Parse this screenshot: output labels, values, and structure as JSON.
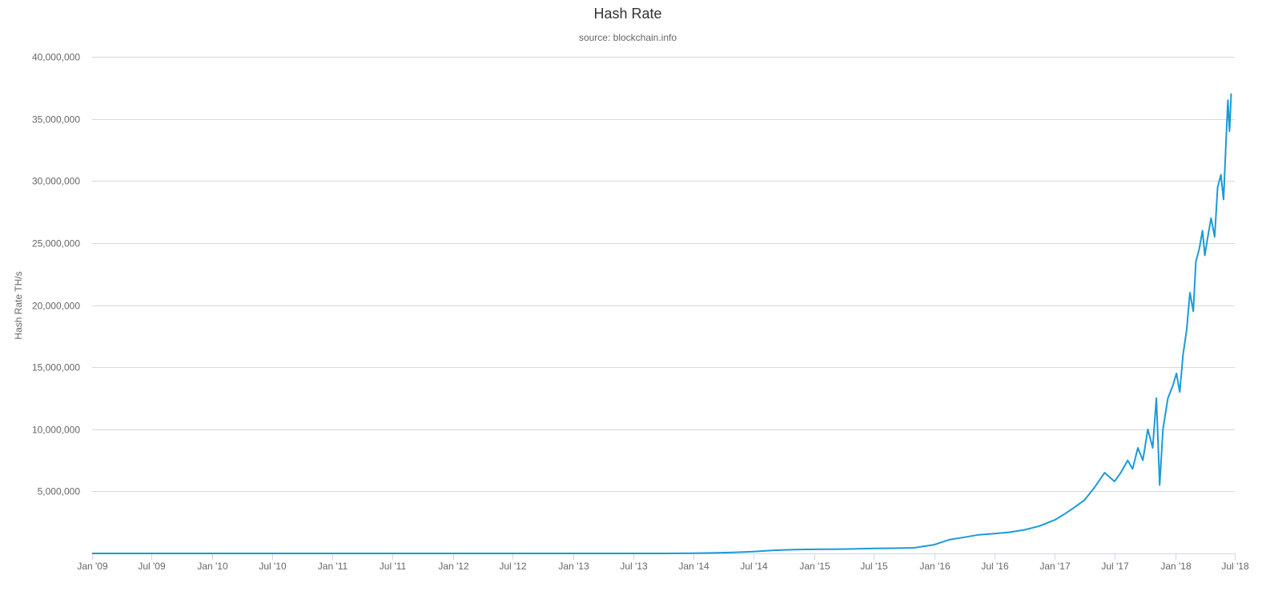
{
  "chart_data": {
    "type": "line",
    "title": "Hash Rate",
    "subtitle": "source: blockchain.info",
    "xlabel": "",
    "ylabel": "Hash Rate TH/s",
    "x_type": "datetime",
    "xlim": [
      "2009-01-01",
      "2018-07-01"
    ],
    "ylim": [
      0,
      40000000
    ],
    "y_tick_values": [
      5000000,
      10000000,
      15000000,
      20000000,
      25000000,
      30000000,
      35000000,
      40000000
    ],
    "y_tick_labels": [
      "5,000,000",
      "10,000,000",
      "15,000,000",
      "20,000,000",
      "25,000,000",
      "30,000,000",
      "35,000,000",
      "40,000,000"
    ],
    "x_tick_values": [
      "2009-01-01",
      "2009-07-01",
      "2010-01-01",
      "2010-07-01",
      "2011-01-01",
      "2011-07-01",
      "2012-01-01",
      "2012-07-01",
      "2013-01-01",
      "2013-07-01",
      "2014-01-01",
      "2014-07-01",
      "2015-01-01",
      "2015-07-01",
      "2016-01-01",
      "2016-07-01",
      "2017-01-01",
      "2017-07-01",
      "2018-01-01",
      "2018-07-01"
    ],
    "x_tick_labels": [
      "Jan '09",
      "Jul '09",
      "Jan '10",
      "Jul '10",
      "Jan '11",
      "Jul '11",
      "Jan '12",
      "Jul '12",
      "Jan '13",
      "Jul '13",
      "Jan '14",
      "Jul '14",
      "Jan '15",
      "Jul '15",
      "Jan '16",
      "Jul '16",
      "Jan '17",
      "Jul '17",
      "Jan '18",
      "Jul '18"
    ],
    "grid": true,
    "legend": "none",
    "colors": {
      "series": "#1a9bd7",
      "grid": "#d8d8d8",
      "axis": "#ccd6eb",
      "text": "#666666",
      "title": "#333333"
    },
    "series": [
      {
        "x": [
          "2009-01-03",
          "2009-07-01",
          "2010-01-01",
          "2010-07-01",
          "2011-01-01",
          "2011-07-01",
          "2012-01-01",
          "2012-07-01",
          "2013-01-01",
          "2013-07-01",
          "2013-10-01",
          "2014-01-01",
          "2014-03-01",
          "2014-05-01",
          "2014-07-01",
          "2014-09-01",
          "2014-11-01",
          "2015-01-01",
          "2015-04-01",
          "2015-07-01",
          "2015-09-01",
          "2015-11-01",
          "2016-01-01",
          "2016-02-15",
          "2016-04-01",
          "2016-05-15",
          "2016-07-01",
          "2016-08-15",
          "2016-10-01",
          "2016-11-15",
          "2017-01-01",
          "2017-02-01",
          "2017-03-01",
          "2017-04-01",
          "2017-05-01",
          "2017-06-01",
          "2017-07-01",
          "2017-07-20",
          "2017-08-10",
          "2017-08-25",
          "2017-09-10",
          "2017-09-25",
          "2017-10-10",
          "2017-10-25",
          "2017-11-05",
          "2017-11-15",
          "2017-11-25",
          "2017-12-10",
          "2017-12-25",
          "2018-01-05",
          "2018-01-15",
          "2018-01-25",
          "2018-02-05",
          "2018-02-15",
          "2018-02-25",
          "2018-03-05",
          "2018-03-15",
          "2018-03-25",
          "2018-04-01",
          "2018-04-10",
          "2018-04-20",
          "2018-05-01",
          "2018-05-10",
          "2018-05-20",
          "2018-05-28",
          "2018-06-05",
          "2018-06-10",
          "2018-06-15",
          "2018-06-20"
        ],
        "values": [
          0,
          0,
          0,
          1,
          2,
          10,
          15,
          20,
          25,
          100,
          1000,
          10000,
          40000,
          80000,
          150000,
          250000,
          300000,
          330000,
          350000,
          400000,
          420000,
          450000,
          700000,
          1100000,
          1300000,
          1500000,
          1600000,
          1700000,
          1900000,
          2200000,
          2700000,
          3200000,
          3700000,
          4300000,
          5300000,
          6500000,
          5800000,
          6500000,
          7500000,
          6800000,
          8500000,
          7500000,
          10000000,
          8500000,
          12500000,
          5500000,
          10000000,
          12500000,
          13500000,
          14500000,
          13000000,
          16000000,
          18000000,
          21000000,
          19500000,
          23500000,
          24500000,
          26000000,
          24000000,
          25500000,
          27000000,
          25500000,
          29500000,
          30500000,
          28500000,
          33500000,
          36500000,
          34000000,
          37000000
        ]
      }
    ]
  }
}
